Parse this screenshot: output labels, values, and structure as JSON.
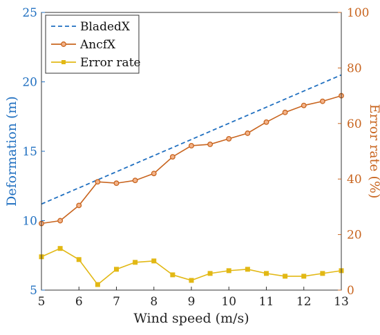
{
  "chart_data": {
    "type": "line",
    "xlabel": "Wind speed (m/s)",
    "ylabel_left": "Deformation (m)",
    "ylabel_right": "Error rate (%)",
    "xlim": [
      5,
      13
    ],
    "ylim_left": [
      5,
      25
    ],
    "ylim_right": [
      0,
      100
    ],
    "x_ticks": [
      "5",
      "6",
      "7",
      "8",
      "9",
      "10",
      "11",
      "12",
      "13"
    ],
    "y_left_ticks": [
      "5",
      "10",
      "15",
      "20",
      "25"
    ],
    "y_right_ticks": [
      "0",
      "20",
      "40",
      "60",
      "80",
      "100"
    ],
    "grid": false,
    "legend_position": "top-left",
    "x": [
      5,
      5.5,
      6,
      6.5,
      7,
      7.5,
      8,
      8.5,
      9,
      9.5,
      10,
      10.5,
      11,
      11.5,
      12,
      12.5,
      13
    ],
    "series": [
      {
        "name": "BladedX",
        "axis": "left",
        "style": "dashed",
        "color": "#1f6fc0",
        "x": [
          5,
          13
        ],
        "values": [
          11.2,
          20.5
        ]
      },
      {
        "name": "AncfX",
        "axis": "left",
        "style": "solid-circle",
        "color": "#c8641e",
        "values": [
          9.8,
          10.0,
          11.1,
          12.8,
          12.7,
          12.9,
          13.4,
          14.6,
          15.4,
          15.5,
          15.9,
          16.3,
          17.1,
          17.8,
          18.3,
          18.6,
          19.0
        ]
      },
      {
        "name": "Error rate",
        "axis": "right",
        "style": "solid-square",
        "color": "#e2b814",
        "values": [
          12,
          15,
          11,
          2,
          7.5,
          10,
          10.5,
          5.5,
          3.5,
          6,
          7,
          7.5,
          6,
          5,
          5,
          6,
          7
        ]
      }
    ]
  }
}
